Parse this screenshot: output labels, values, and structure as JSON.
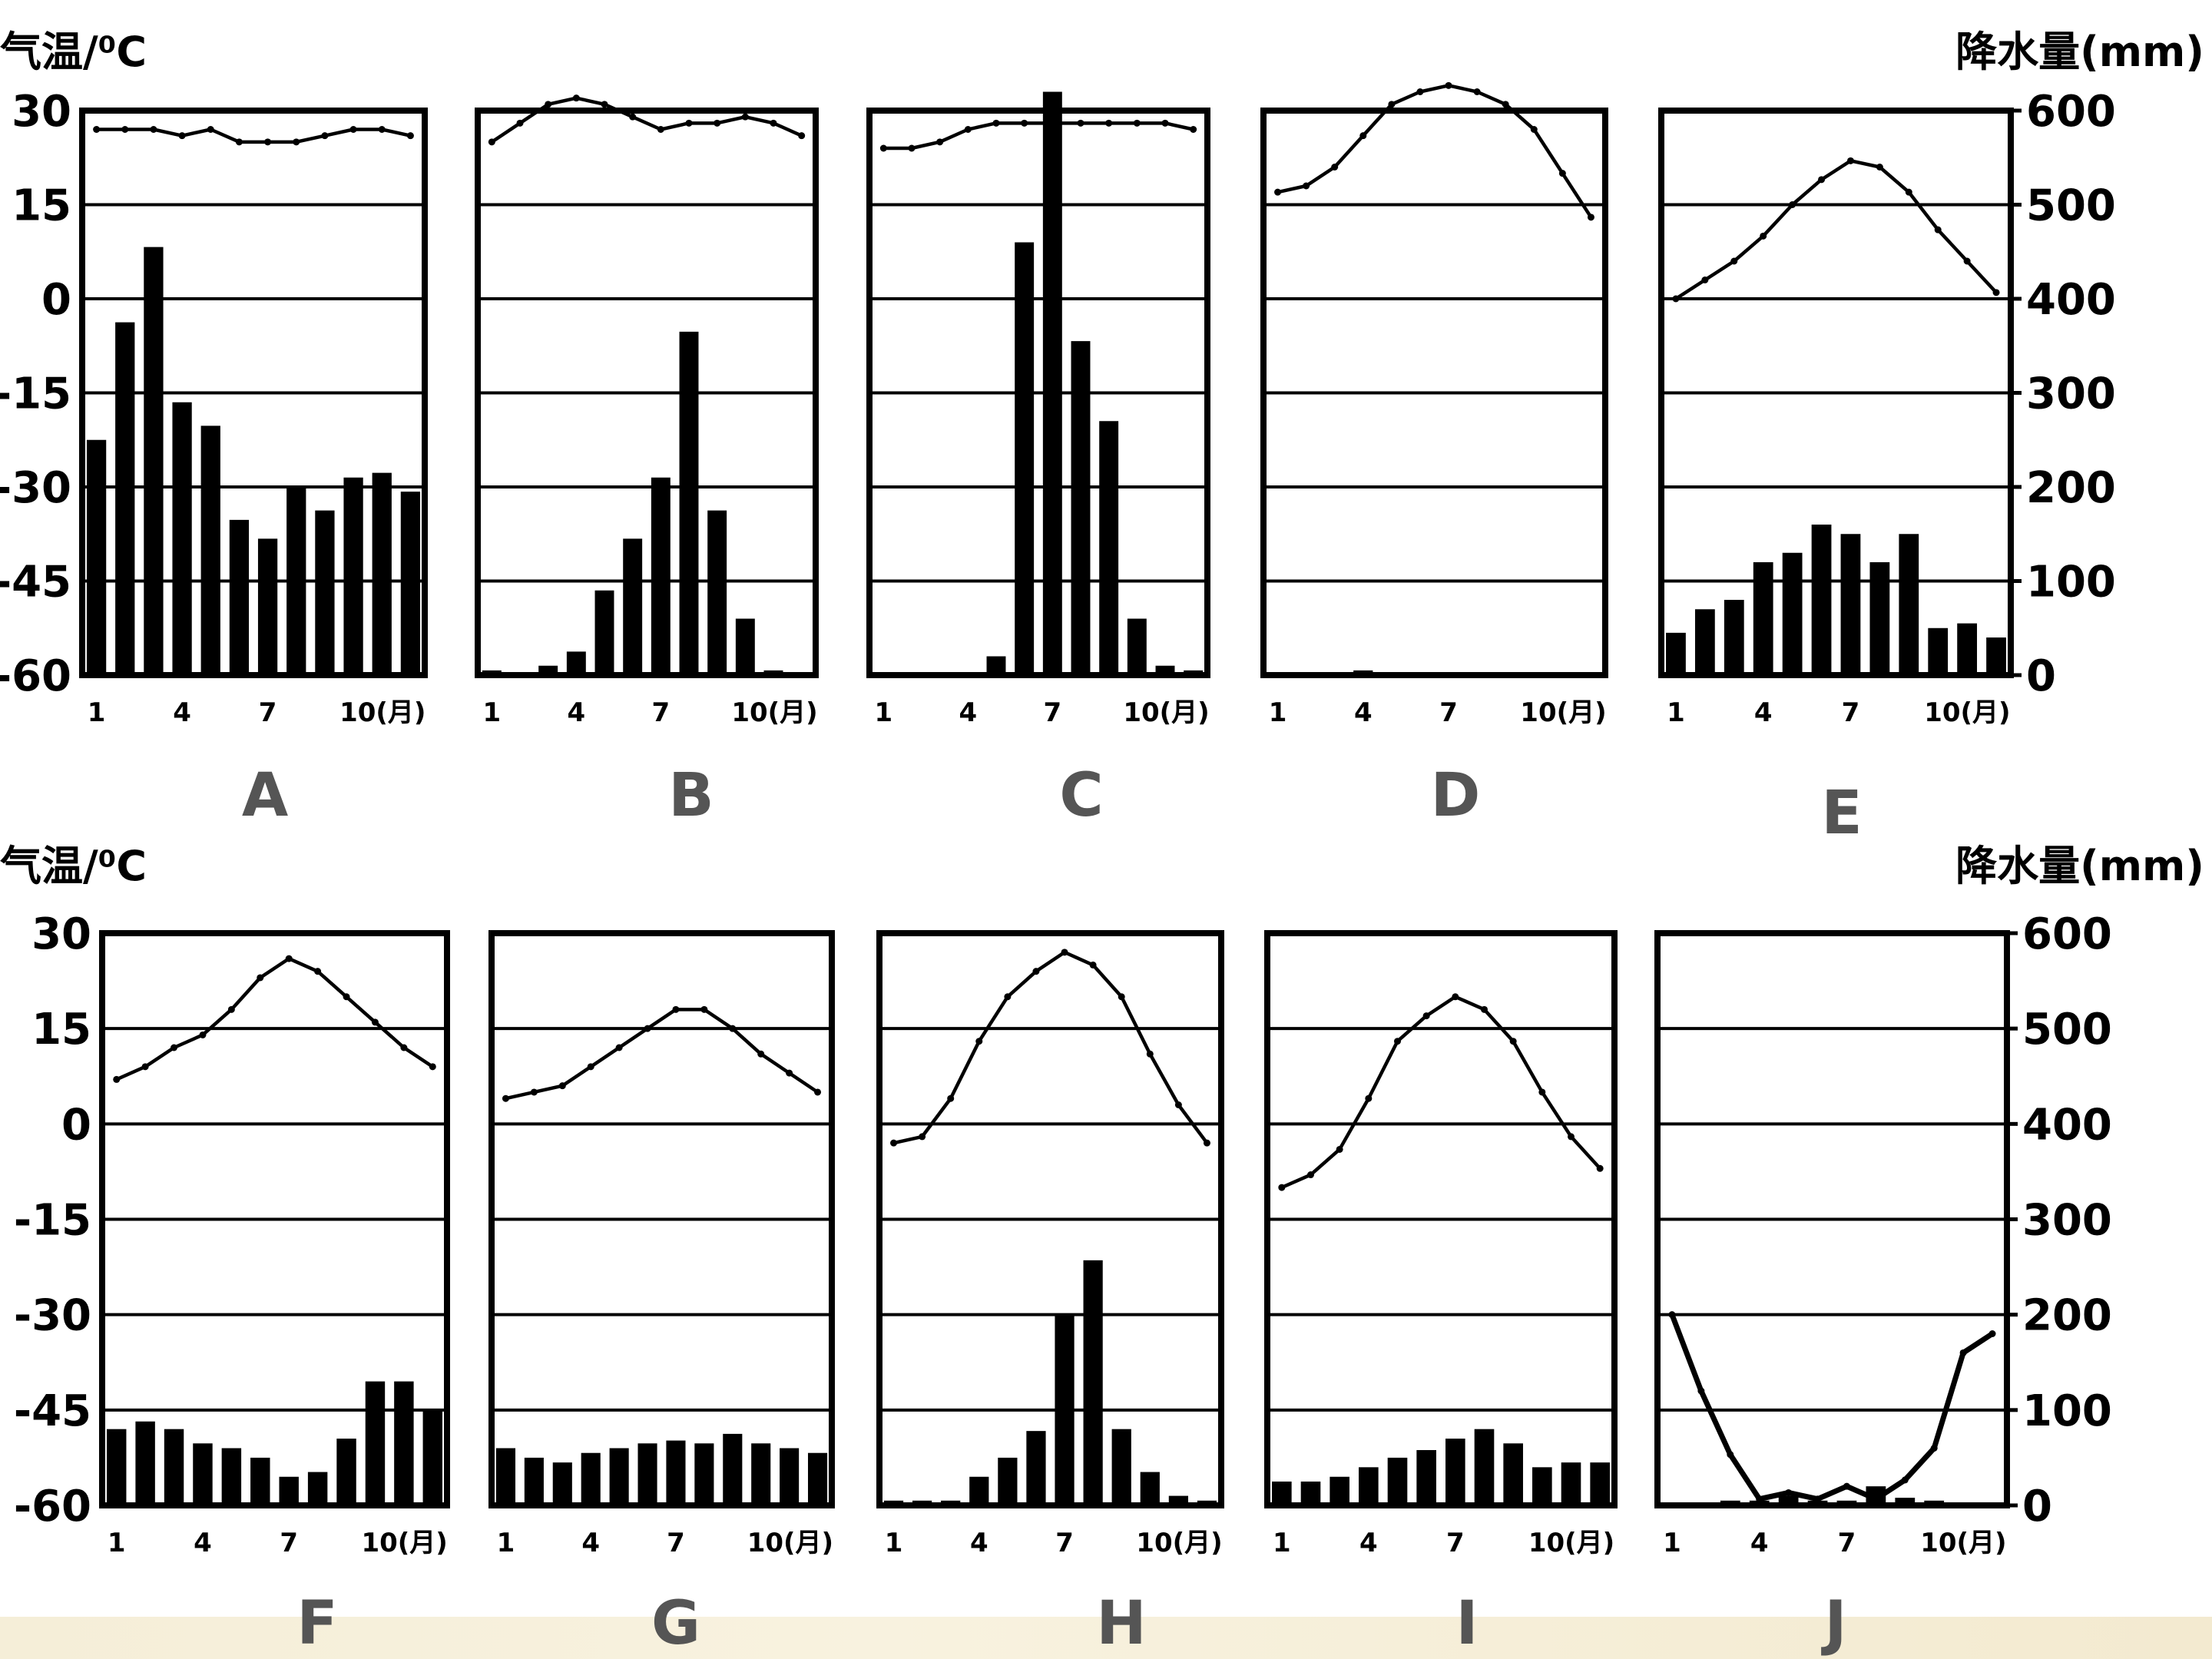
{
  "rows": [
    {
      "temp_axis_title": "气温/⁰C",
      "precip_axis_title": "降水量(mm)"
    },
    {
      "temp_axis_title": "气温/⁰C",
      "precip_axis_title": "降水量(mm)"
    }
  ],
  "temp_ticks": [
    "30",
    "15",
    "0",
    "-15",
    "-30",
    "-45",
    "-60"
  ],
  "precip_ticks": [
    "600",
    "500",
    "400",
    "300",
    "200",
    "100",
    "0"
  ],
  "month_ticks": [
    "1",
    "4",
    "7",
    "10(月)"
  ],
  "chart_data": [
    {
      "type": "bar+line",
      "label": "A",
      "temp": [
        27,
        27,
        27,
        26,
        27,
        25,
        25,
        25,
        26,
        27,
        27,
        26
      ],
      "precip": [
        250,
        375,
        455,
        290,
        265,
        165,
        145,
        200,
        175,
        210,
        215,
        195
      ],
      "ylim_temp": [
        -60,
        30
      ],
      "ylim_precip": [
        0,
        600
      ]
    },
    {
      "type": "bar+line",
      "label": "B",
      "temp": [
        25,
        28,
        31,
        32,
        31,
        29,
        27,
        28,
        28,
        29,
        28,
        26
      ],
      "precip": [
        5,
        3,
        10,
        25,
        90,
        145,
        210,
        365,
        175,
        60,
        5,
        2
      ],
      "ylim_temp": [
        -60,
        30
      ],
      "ylim_precip": [
        0,
        600
      ]
    },
    {
      "type": "bar+line",
      "label": "C",
      "temp": [
        24,
        24,
        25,
        27,
        28,
        28,
        28,
        28,
        28,
        28,
        28,
        27
      ],
      "precip": [
        3,
        3,
        3,
        3,
        20,
        460,
        620,
        355,
        270,
        60,
        10,
        5
      ],
      "ylim_temp": [
        -60,
        30
      ],
      "ylim_precip": [
        0,
        600
      ]
    },
    {
      "type": "bar+line",
      "label": "D",
      "temp": [
        17,
        18,
        21,
        26,
        31,
        33,
        34,
        33,
        31,
        27,
        20,
        13
      ],
      "precip": [
        0,
        0,
        0,
        5,
        0,
        0,
        0,
        0,
        0,
        3,
        0,
        0
      ],
      "ylim_temp": [
        -60,
        30
      ],
      "ylim_precip": [
        0,
        600
      ]
    },
    {
      "type": "bar+line",
      "label": "E",
      "temp": [
        0,
        3,
        6,
        10,
        15,
        19,
        22,
        21,
        17,
        11,
        6,
        1
      ],
      "precip": [
        45,
        70,
        80,
        120,
        130,
        160,
        150,
        120,
        150,
        50,
        55,
        40
      ],
      "ylim_temp": [
        -60,
        30
      ],
      "ylim_precip": [
        0,
        600
      ]
    },
    {
      "type": "bar+line",
      "label": "F",
      "temp": [
        7,
        9,
        12,
        14,
        18,
        23,
        26,
        24,
        20,
        16,
        12,
        9
      ],
      "precip": [
        80,
        88,
        80,
        65,
        60,
        50,
        30,
        35,
        70,
        130,
        130,
        100
      ],
      "ylim_temp": [
        -60,
        30
      ],
      "ylim_precip": [
        0,
        600
      ]
    },
    {
      "type": "bar+line",
      "label": "G",
      "temp": [
        4,
        5,
        6,
        9,
        12,
        15,
        18,
        18,
        15,
        11,
        8,
        5
      ],
      "precip": [
        60,
        50,
        45,
        55,
        60,
        65,
        68,
        65,
        75,
        65,
        60,
        55
      ],
      "ylim_temp": [
        -60,
        30
      ],
      "ylim_precip": [
        0,
        600
      ]
    },
    {
      "type": "bar+line",
      "label": "H",
      "temp": [
        -3,
        -2,
        4,
        13,
        20,
        24,
        27,
        25,
        20,
        11,
        3,
        -3
      ],
      "precip": [
        5,
        5,
        5,
        30,
        50,
        78,
        200,
        257,
        80,
        35,
        10,
        5
      ],
      "ylim_temp": [
        -60,
        30
      ],
      "ylim_precip": [
        0,
        600
      ]
    },
    {
      "type": "bar+line",
      "label": "I",
      "temp": [
        -10,
        -8,
        -4,
        4,
        13,
        17,
        20,
        18,
        13,
        5,
        -2,
        -7
      ],
      "precip": [
        25,
        25,
        30,
        40,
        50,
        58,
        70,
        80,
        65,
        40,
        45,
        45
      ],
      "ylim_temp": [
        -60,
        30
      ],
      "ylim_precip": [
        0,
        600
      ]
    },
    {
      "type": "bar+line",
      "label": "J",
      "temp": [
        -30,
        -42,
        -52,
        -59,
        -58,
        -59,
        -57,
        -59,
        -56,
        -51,
        -36,
        -33
      ],
      "precip": [
        0,
        0,
        5,
        5,
        10,
        5,
        5,
        20,
        8,
        5,
        0,
        0
      ],
      "ylim_temp": [
        -60,
        30
      ],
      "ylim_precip": [
        0,
        600
      ]
    }
  ]
}
